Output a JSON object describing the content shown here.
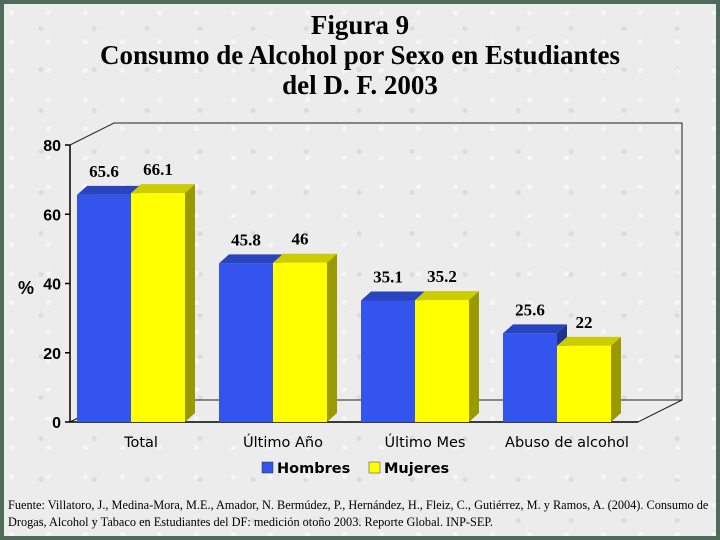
{
  "title_lines": [
    "Figura 9",
    "Consumo de Alcohol por Sexo en Estudiantes",
    "del D. F. 2003"
  ],
  "source_text": "Fuente: Villatoro, J., Medina-Mora, M.E., Amador, N. Bermúdez, P., Hernández, H., Fleiz, C., Gutiérrez, M. y Ramos, A. (2004). Consumo de Drogas, Alcohol y Tabaco en Estudiantes del DF: medición otoño 2003. Reporte Global. INP-SEP.",
  "colors": {
    "hombres": "#3355ee",
    "mujeres": "#ffff00",
    "frame": "#4f6b5a"
  },
  "chart_data": {
    "type": "bar",
    "title": "Consumo de Alcohol por Sexo en Estudiantes del D. F. 2003",
    "ylabel": "%",
    "xlabel": "",
    "ylim": [
      0,
      80
    ],
    "yticks": [
      0,
      20,
      40,
      60,
      80
    ],
    "categories": [
      "Total",
      "Último Año",
      "Último Mes",
      "Abuso de alcohol"
    ],
    "series": [
      {
        "name": "Hombres",
        "values": [
          65.6,
          45.8,
          35.1,
          25.6
        ]
      },
      {
        "name": "Mujeres",
        "values": [
          66.1,
          46,
          35.2,
          22
        ]
      }
    ],
    "value_labels": [
      [
        "65.6",
        "45.8",
        "35.1",
        "25.6"
      ],
      [
        "66.1",
        "46",
        "35.2",
        "22"
      ]
    ],
    "legend_position": "bottom",
    "grid": false
  }
}
